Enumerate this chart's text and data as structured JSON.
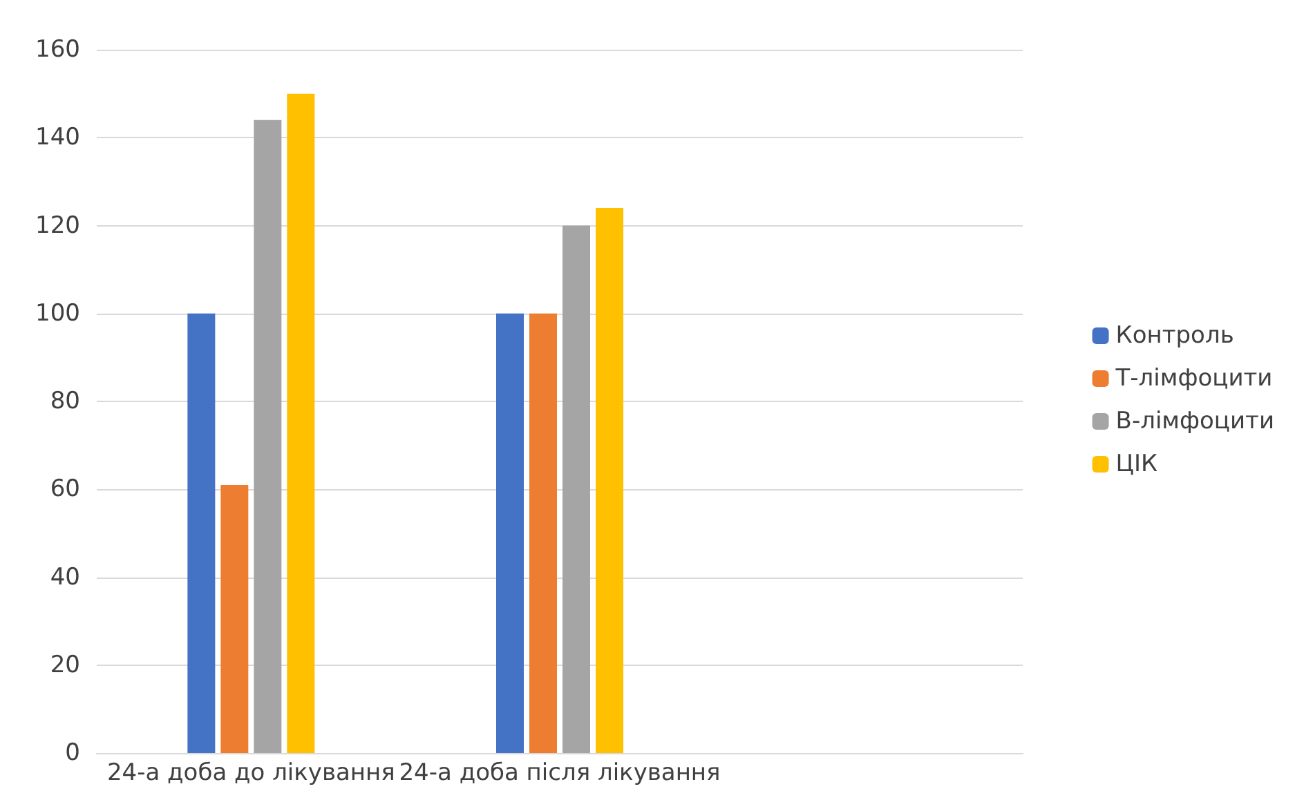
{
  "chart_data": {
    "type": "bar",
    "categories": [
      "24-а доба до лікування",
      "24-а доба після лікування",
      null
    ],
    "series": [
      {
        "name": "Контроль",
        "color": "#4472c4",
        "values": [
          100,
          100,
          null
        ]
      },
      {
        "name": "Т-лімфоцити",
        "color": "#ed7d31",
        "values": [
          61,
          100,
          null
        ]
      },
      {
        "name": "В-лімфоцити",
        "color": "#a5a5a5",
        "values": [
          144,
          120,
          null
        ]
      },
      {
        "name": "ЦІК",
        "color": "#ffc000",
        "values": [
          150,
          124,
          null
        ]
      }
    ],
    "ylim": [
      0,
      160
    ],
    "yticks": [
      0,
      20,
      40,
      60,
      80,
      100,
      120,
      140,
      160
    ],
    "grid": "y",
    "legend": "right"
  }
}
